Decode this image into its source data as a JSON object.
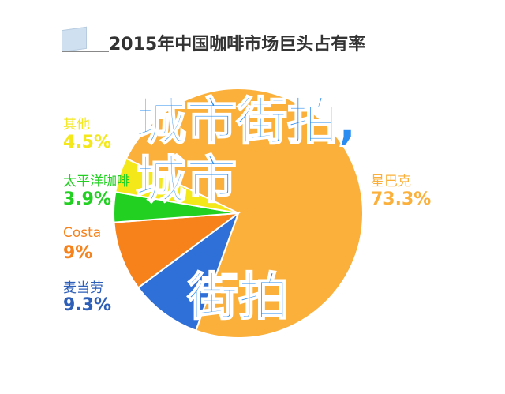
{
  "chart_data": {
    "type": "pie",
    "title": "2015年中国咖啡市场巨头占有率",
    "slices": [
      {
        "name": "星巴克",
        "value": 73.3,
        "label": "73.3%",
        "color": "#fbb03b"
      },
      {
        "name": "麦当劳",
        "value": 9.3,
        "label": "9.3%",
        "color": "#2e6fd8"
      },
      {
        "name": "Costa",
        "value": 9,
        "label": "9%",
        "color": "#f7821b"
      },
      {
        "name": "太平洋咖啡",
        "value": 3.9,
        "label": "3.9%",
        "color": "#22d022"
      },
      {
        "name": "其他",
        "value": 4.5,
        "label": "4.5%",
        "color": "#f4e81a"
      }
    ]
  },
  "overlay": {
    "line1": "城市街拍,城市",
    "line2": "街拍"
  }
}
